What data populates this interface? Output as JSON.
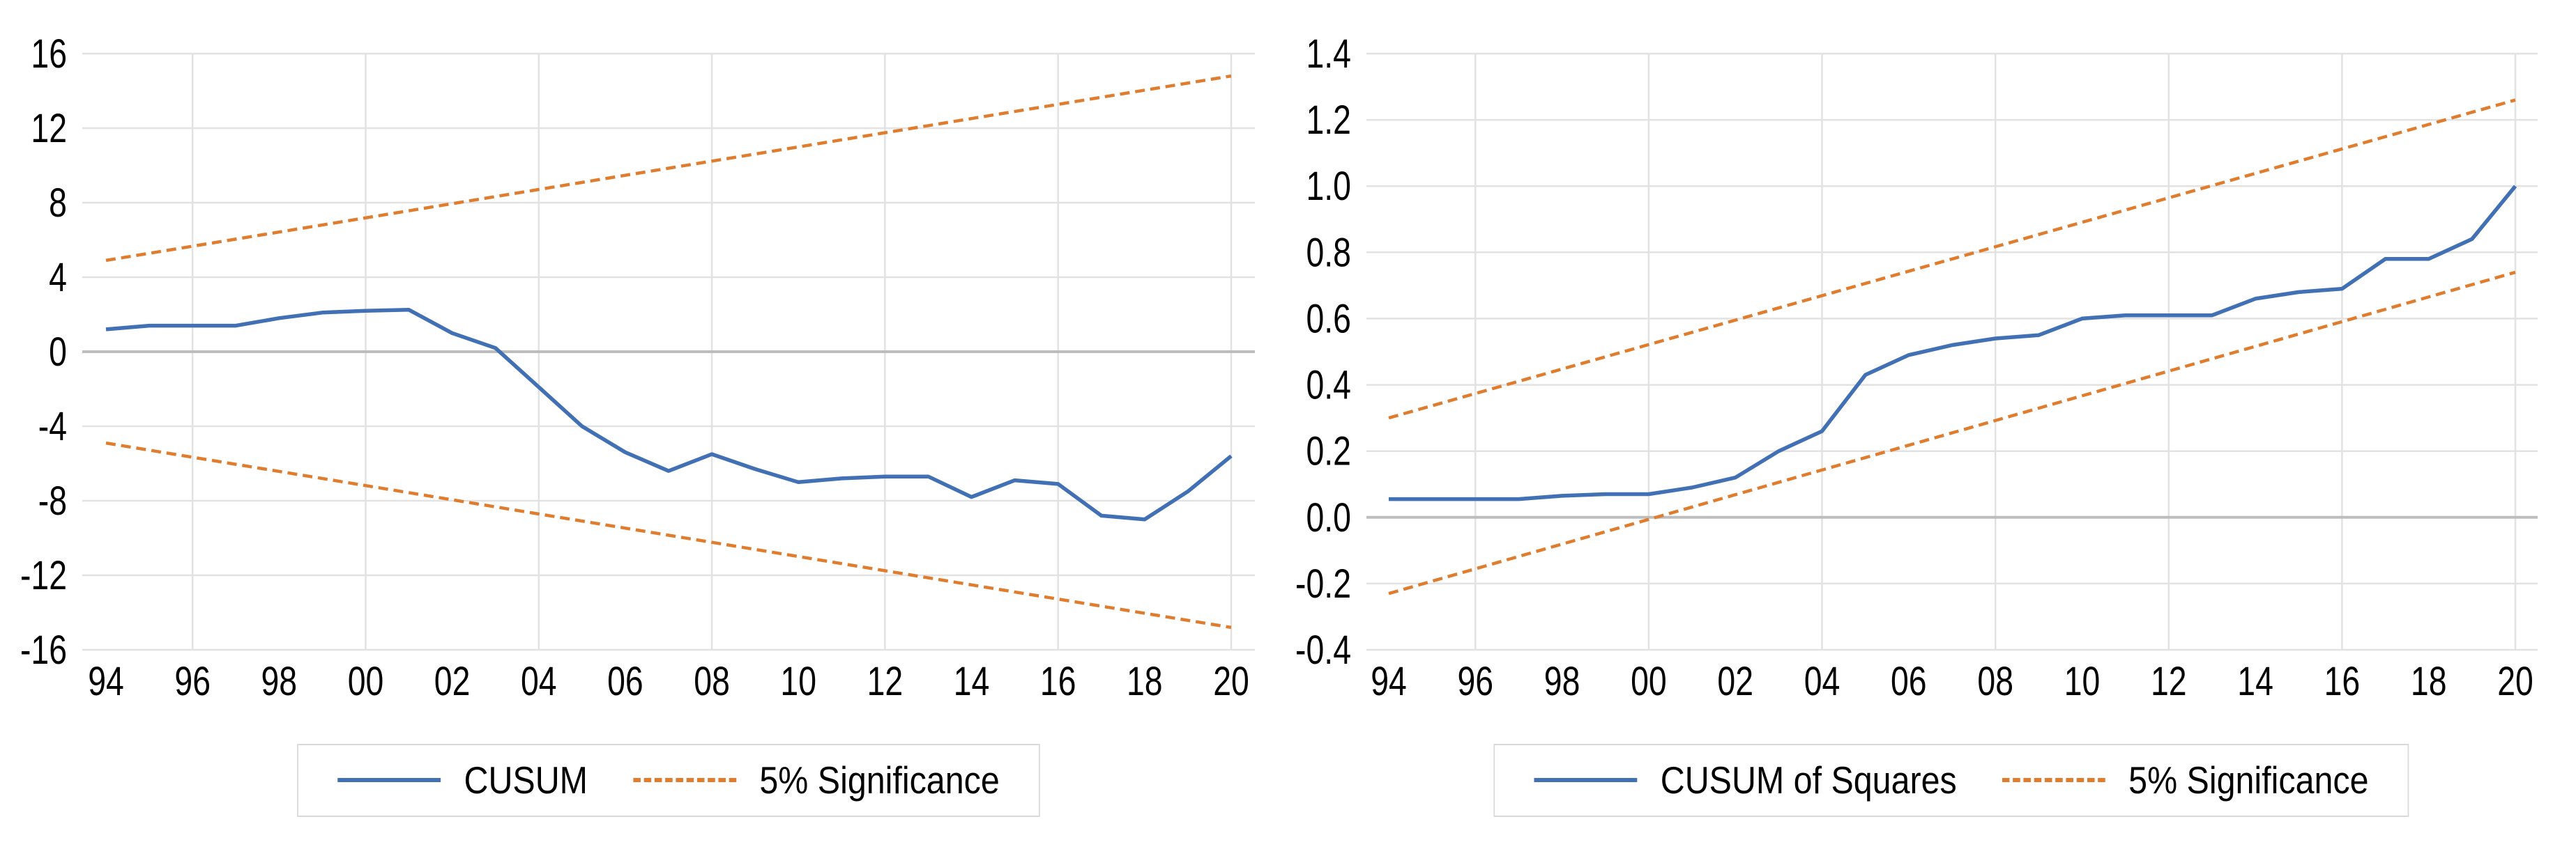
{
  "colors": {
    "series_blue": "#4270B4",
    "band_orange": "#E07C2E",
    "gridline": "#E2E2E2",
    "zero_axis": "#BDBDBD",
    "axis_text": "#000000",
    "legend_border": "#D9D9D9",
    "background": "#FFFFFF"
  },
  "chart_data": [
    {
      "id": "cusum",
      "type": "line",
      "title": "",
      "x": [
        1994,
        1995,
        1996,
        1997,
        1998,
        1999,
        2000,
        2001,
        2002,
        2003,
        2004,
        2005,
        2006,
        2007,
        2008,
        2009,
        2010,
        2011,
        2012,
        2013,
        2014,
        2015,
        2016,
        2017,
        2018,
        2019,
        2020
      ],
      "x_tick_years": [
        1994,
        1996,
        1998,
        2000,
        2002,
        2004,
        2006,
        2008,
        2010,
        2012,
        2014,
        2016,
        2018,
        2020
      ],
      "x_tick_labels": [
        "94",
        "96",
        "98",
        "00",
        "02",
        "04",
        "06",
        "08",
        "10",
        "12",
        "14",
        "16",
        "18",
        "20"
      ],
      "x_gridline_years": [
        1996,
        2000,
        2004,
        2008,
        2012,
        2016,
        2020
      ],
      "y_ticks": [
        16,
        12,
        8,
        4,
        0,
        -4,
        -8,
        -12,
        -16
      ],
      "y_tick_labels": [
        "16",
        "12",
        "8",
        "4",
        "0",
        "-4",
        "-8",
        "-12",
        "-16"
      ],
      "ylim": [
        -16,
        16
      ],
      "grid": true,
      "legend_position": "bottom",
      "series": [
        {
          "name": "CUSUM",
          "style": "solid",
          "color_key": "series_blue",
          "values": [
            1.2,
            1.4,
            1.4,
            1.4,
            1.8,
            2.1,
            2.2,
            2.25,
            1.0,
            0.2,
            -1.9,
            -4.0,
            -5.4,
            -6.4,
            -5.5,
            -6.3,
            -7.0,
            -6.8,
            -6.7,
            -6.7,
            -7.8,
            -6.9,
            -7.1,
            -8.8,
            -9.0,
            -7.5,
            -5.6
          ]
        },
        {
          "name": "5% Significance (upper band)",
          "style": "dashed",
          "color_key": "band_orange",
          "values_linear": {
            "start": 4.9,
            "end": 14.8
          }
        },
        {
          "name": "5% Significance (lower band)",
          "style": "dashed",
          "color_key": "band_orange",
          "values_linear": {
            "start": -4.9,
            "end": -14.8
          }
        }
      ],
      "legend": [
        {
          "label": "CUSUM",
          "swatch": "solid-blue"
        },
        {
          "label": "5% Significance",
          "swatch": "dashed-orange"
        }
      ]
    },
    {
      "id": "cusum-of-squares",
      "type": "line",
      "title": "",
      "x": [
        1994,
        1995,
        1996,
        1997,
        1998,
        1999,
        2000,
        2001,
        2002,
        2003,
        2004,
        2005,
        2006,
        2007,
        2008,
        2009,
        2010,
        2011,
        2012,
        2013,
        2014,
        2015,
        2016,
        2017,
        2018,
        2019,
        2020
      ],
      "x_tick_years": [
        1994,
        1996,
        1998,
        2000,
        2002,
        2004,
        2006,
        2008,
        2010,
        2012,
        2014,
        2016,
        2018,
        2020
      ],
      "x_tick_labels": [
        "94",
        "96",
        "98",
        "00",
        "02",
        "04",
        "06",
        "08",
        "10",
        "12",
        "14",
        "16",
        "18",
        "20"
      ],
      "x_gridline_years": [
        1996,
        2000,
        2004,
        2008,
        2012,
        2016,
        2020
      ],
      "y_ticks": [
        1.4,
        1.2,
        1.0,
        0.8,
        0.6,
        0.4,
        0.2,
        0.0,
        -0.2,
        -0.4
      ],
      "y_tick_labels": [
        "1.4",
        "1.2",
        "1.0",
        "0.8",
        "0.6",
        "0.4",
        "0.2",
        "0.0",
        "-0.2",
        "-0.4"
      ],
      "ylim": [
        -0.4,
        1.4
      ],
      "grid": true,
      "legend_position": "bottom",
      "series": [
        {
          "name": "CUSUM of Squares",
          "style": "solid",
          "color_key": "series_blue",
          "values": [
            0.055,
            0.055,
            0.055,
            0.055,
            0.065,
            0.07,
            0.07,
            0.09,
            0.12,
            0.2,
            0.26,
            0.43,
            0.49,
            0.52,
            0.54,
            0.55,
            0.6,
            0.61,
            0.61,
            0.61,
            0.66,
            0.68,
            0.69,
            0.78,
            0.78,
            0.84,
            1.0
          ]
        },
        {
          "name": "5% Significance (upper band)",
          "style": "dashed",
          "color_key": "band_orange",
          "values_linear": {
            "start": 0.3,
            "end": 1.26
          }
        },
        {
          "name": "5% Significance (lower band)",
          "style": "dashed",
          "color_key": "band_orange",
          "values_linear": {
            "start": -0.23,
            "end": 0.74
          }
        }
      ],
      "legend": [
        {
          "label": "CUSUM of Squares",
          "swatch": "solid-blue"
        },
        {
          "label": "5% Significance",
          "swatch": "dashed-orange"
        }
      ]
    }
  ]
}
